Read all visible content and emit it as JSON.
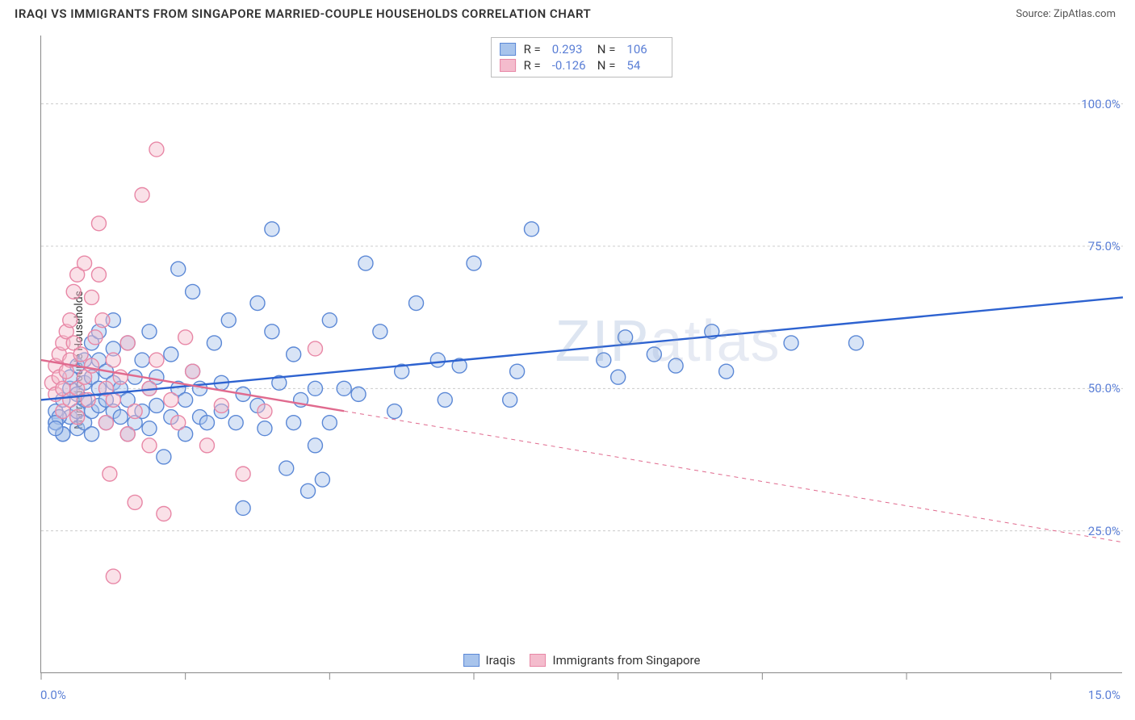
{
  "title": "IRAQI VS IMMIGRANTS FROM SINGAPORE MARRIED-COUPLE HOUSEHOLDS CORRELATION CHART",
  "source": "Source: ZipAtlas.com",
  "watermark": "ZIPatlas",
  "chart": {
    "type": "scatter",
    "background_color": "#ffffff",
    "grid_color": "#cccccc",
    "axis_color": "#888888",
    "ylabel": "Married-couple Households",
    "label_fontsize": 14,
    "tick_fontsize": 15,
    "tick_color": "#5b7fd6",
    "xlim": [
      0,
      15
    ],
    "ylim": [
      0,
      112
    ],
    "x_tick_positions": [
      0,
      2,
      4,
      6,
      8,
      10,
      12,
      14
    ],
    "y_gridlines": [
      25,
      50,
      75,
      100
    ],
    "y_tick_labels": [
      "25.0%",
      "50.0%",
      "75.0%",
      "100.0%"
    ],
    "x_start_label": "0.0%",
    "x_end_label": "15.0%",
    "marker_radius": 9,
    "marker_fill_opacity": 0.45,
    "marker_stroke_width": 1.4,
    "line_width": 2.4,
    "series": [
      {
        "name": "Iraqis",
        "color_fill": "#a8c4ec",
        "color_stroke": "#5b88d6",
        "line_color": "#2d62d0",
        "r_value": "0.293",
        "n_value": "106",
        "regression": {
          "x1": 0,
          "y1": 48,
          "x2": 15,
          "y2": 66,
          "solid_until_x": 15
        },
        "points": [
          [
            0.2,
            46
          ],
          [
            0.2,
            44
          ],
          [
            0.3,
            42
          ],
          [
            0.3,
            48
          ],
          [
            0.4,
            50
          ],
          [
            0.4,
            52
          ],
          [
            0.4,
            45
          ],
          [
            0.5,
            54
          ],
          [
            0.5,
            46
          ],
          [
            0.5,
            49
          ],
          [
            0.5,
            43
          ],
          [
            0.6,
            55
          ],
          [
            0.6,
            51
          ],
          [
            0.6,
            48
          ],
          [
            0.6,
            44
          ],
          [
            0.7,
            58
          ],
          [
            0.7,
            52
          ],
          [
            0.7,
            46
          ],
          [
            0.7,
            42
          ],
          [
            0.8,
            60
          ],
          [
            0.8,
            50
          ],
          [
            0.8,
            47
          ],
          [
            0.8,
            55
          ],
          [
            0.9,
            53
          ],
          [
            0.9,
            48
          ],
          [
            0.9,
            44
          ],
          [
            1.0,
            57
          ],
          [
            1.0,
            51
          ],
          [
            1.0,
            46
          ],
          [
            1.0,
            62
          ],
          [
            1.1,
            50
          ],
          [
            1.1,
            45
          ],
          [
            1.2,
            58
          ],
          [
            1.2,
            48
          ],
          [
            1.2,
            42
          ],
          [
            1.3,
            44
          ],
          [
            1.3,
            52
          ],
          [
            1.4,
            55
          ],
          [
            1.4,
            46
          ],
          [
            1.5,
            50
          ],
          [
            1.5,
            43
          ],
          [
            1.5,
            60
          ],
          [
            1.6,
            52
          ],
          [
            1.6,
            47
          ],
          [
            1.7,
            38
          ],
          [
            1.8,
            45
          ],
          [
            1.8,
            56
          ],
          [
            1.9,
            71
          ],
          [
            1.9,
            50
          ],
          [
            2.0,
            42
          ],
          [
            2.0,
            48
          ],
          [
            2.1,
            53
          ],
          [
            2.1,
            67
          ],
          [
            2.2,
            45
          ],
          [
            2.2,
            50
          ],
          [
            2.3,
            44
          ],
          [
            2.4,
            58
          ],
          [
            2.5,
            51
          ],
          [
            2.5,
            46
          ],
          [
            2.6,
            62
          ],
          [
            2.7,
            44
          ],
          [
            2.8,
            49
          ],
          [
            2.8,
            29
          ],
          [
            3.0,
            65
          ],
          [
            3.0,
            47
          ],
          [
            3.1,
            43
          ],
          [
            3.2,
            78
          ],
          [
            3.2,
            60
          ],
          [
            3.3,
            51
          ],
          [
            3.4,
            36
          ],
          [
            3.5,
            44
          ],
          [
            3.5,
            56
          ],
          [
            3.6,
            48
          ],
          [
            3.7,
            32
          ],
          [
            3.8,
            40
          ],
          [
            3.8,
            50
          ],
          [
            3.9,
            34
          ],
          [
            4.0,
            62
          ],
          [
            4.0,
            44
          ],
          [
            4.2,
            50
          ],
          [
            4.4,
            49
          ],
          [
            4.5,
            72
          ],
          [
            4.7,
            60
          ],
          [
            4.9,
            46
          ],
          [
            5.0,
            53
          ],
          [
            5.2,
            65
          ],
          [
            5.5,
            55
          ],
          [
            5.6,
            48
          ],
          [
            5.8,
            54
          ],
          [
            6.0,
            72
          ],
          [
            6.5,
            48
          ],
          [
            6.6,
            53
          ],
          [
            6.8,
            78
          ],
          [
            7.8,
            55
          ],
          [
            8.0,
            52
          ],
          [
            8.1,
            59
          ],
          [
            8.5,
            56
          ],
          [
            8.8,
            54
          ],
          [
            9.3,
            60
          ],
          [
            9.5,
            53
          ],
          [
            10.4,
            58
          ],
          [
            11.3,
            58
          ],
          [
            0.3,
            42
          ],
          [
            0.25,
            45
          ],
          [
            0.2,
            44
          ],
          [
            0.2,
            43
          ]
        ]
      },
      {
        "name": "Immigrants from Singapore",
        "color_fill": "#f4bccd",
        "color_stroke": "#e887a6",
        "line_color": "#e06a8e",
        "r_value": "-0.126",
        "n_value": "54",
        "regression": {
          "x1": 0,
          "y1": 55,
          "x2": 15,
          "y2": 23,
          "solid_until_x": 4.2
        },
        "points": [
          [
            0.15,
            51
          ],
          [
            0.2,
            54
          ],
          [
            0.2,
            49
          ],
          [
            0.25,
            56
          ],
          [
            0.25,
            52
          ],
          [
            0.3,
            58
          ],
          [
            0.3,
            50
          ],
          [
            0.3,
            46
          ],
          [
            0.35,
            60
          ],
          [
            0.35,
            53
          ],
          [
            0.4,
            62
          ],
          [
            0.4,
            55
          ],
          [
            0.4,
            48
          ],
          [
            0.45,
            67
          ],
          [
            0.45,
            58
          ],
          [
            0.5,
            50
          ],
          [
            0.5,
            70
          ],
          [
            0.5,
            45
          ],
          [
            0.55,
            56
          ],
          [
            0.6,
            72
          ],
          [
            0.6,
            52
          ],
          [
            0.65,
            48
          ],
          [
            0.7,
            66
          ],
          [
            0.7,
            54
          ],
          [
            0.75,
            59
          ],
          [
            0.8,
            70
          ],
          [
            0.8,
            79
          ],
          [
            0.85,
            62
          ],
          [
            0.9,
            50
          ],
          [
            0.9,
            44
          ],
          [
            0.95,
            35
          ],
          [
            1.0,
            55
          ],
          [
            1.0,
            48
          ],
          [
            1.0,
            17
          ],
          [
            1.1,
            52
          ],
          [
            1.2,
            42
          ],
          [
            1.2,
            58
          ],
          [
            1.3,
            30
          ],
          [
            1.3,
            46
          ],
          [
            1.4,
            84
          ],
          [
            1.5,
            40
          ],
          [
            1.5,
            50
          ],
          [
            1.6,
            92
          ],
          [
            1.6,
            55
          ],
          [
            1.7,
            28
          ],
          [
            1.8,
            48
          ],
          [
            1.9,
            44
          ],
          [
            2.0,
            59
          ],
          [
            2.1,
            53
          ],
          [
            2.3,
            40
          ],
          [
            2.5,
            47
          ],
          [
            2.8,
            35
          ],
          [
            3.1,
            46
          ],
          [
            3.8,
            57
          ]
        ]
      }
    ]
  }
}
